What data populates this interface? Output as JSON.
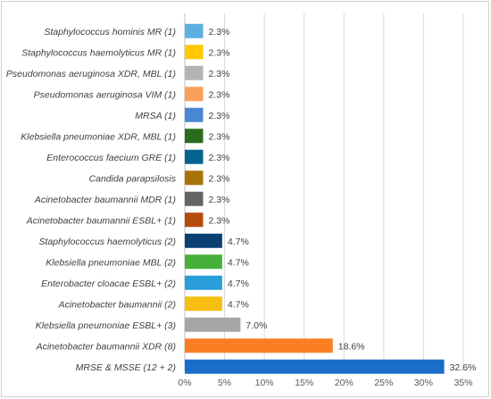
{
  "chart_data": {
    "type": "bar",
    "orientation": "horizontal",
    "title": "",
    "xlabel": "",
    "ylabel": "",
    "xlim": [
      0,
      35
    ],
    "grid": true,
    "legend": "none",
    "ticks": [
      "0%",
      "5%",
      "10%",
      "15%",
      "20%",
      "25%",
      "30%",
      "35%"
    ],
    "categories": [
      "Staphylococcus hominis MR (1)",
      "Staphylococcus haemolyticus MR (1)",
      "Pseudomonas aeruginosa XDR, MBL (1)",
      "Pseudomonas aeruginosa VIM (1)",
      "MRSA  (1)",
      "Klebsiella pneumoniae XDR, MBL (1)",
      "Enterococcus faecium GRE (1)",
      "Candida parapsilosis",
      "Acinetobacter baumannii MDR (1)",
      "Acinetobacter baumannii ESBL+ (1)",
      "Staphylococcus haemolyticus  (2)",
      "Klebsiella pneumoniae MBL (2)",
      "Enterobacter cloacae ESBL+ (2)",
      "Acinetobacter baumannii  (2)",
      "Klebsiella pneumoniae ESBL+ (3)",
      "Acinetobacter baumannii XDR (8)",
      "MRSE & MSSE  (12 + 2)"
    ],
    "values": [
      2.3,
      2.3,
      2.3,
      2.3,
      2.3,
      2.3,
      2.3,
      2.3,
      2.3,
      2.3,
      4.7,
      4.7,
      4.7,
      4.7,
      7.0,
      18.6,
      32.6
    ],
    "value_labels": [
      "2.3%",
      "2.3%",
      "2.3%",
      "2.3%",
      "2.3%",
      "2.3%",
      "2.3%",
      "2.3%",
      "2.3%",
      "2.3%",
      "4.7%",
      "4.7%",
      "4.7%",
      "4.7%",
      "7.0%",
      "18.6%",
      "32.6%"
    ],
    "colors": [
      "#5bb0e0",
      "#ffc800",
      "#b3b3b3",
      "#f99f5a",
      "#4a86d4",
      "#2c6b1c",
      "#02648f",
      "#a8740a",
      "#646464",
      "#b54b0b",
      "#0c3f73",
      "#47b03a",
      "#2a9ed8",
      "#f6be10",
      "#a6a6a6",
      "#fb7e24",
      "#1a6ec9"
    ]
  }
}
